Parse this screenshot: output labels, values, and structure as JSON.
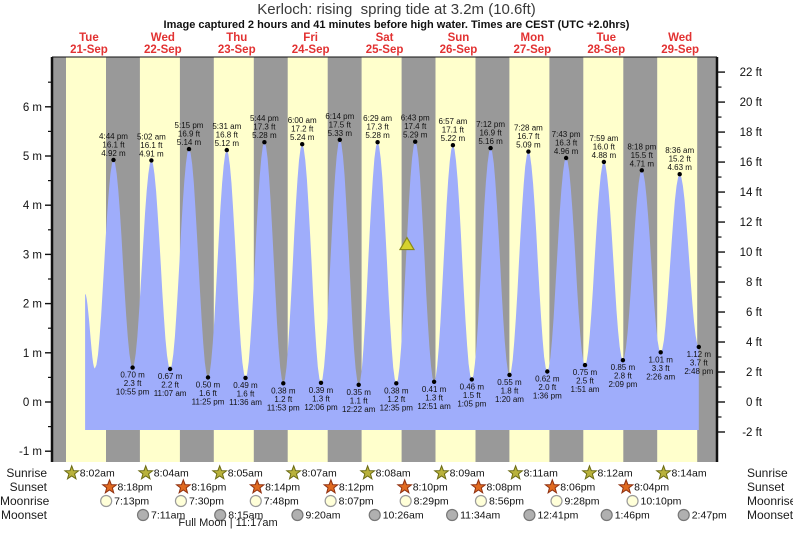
{
  "header": {
    "title": "Kerloch: rising  spring tide at 3.2m (10.6ft)",
    "subtitle": "Image captured 2 hours and 41 minutes before high water. Times are CEST (UTC +2.0hrs)"
  },
  "days": [
    {
      "dow": "Tue",
      "date": "21-Sep"
    },
    {
      "dow": "Wed",
      "date": "22-Sep"
    },
    {
      "dow": "Thu",
      "date": "23-Sep"
    },
    {
      "dow": "Fri",
      "date": "24-Sep"
    },
    {
      "dow": "Sat",
      "date": "25-Sep"
    },
    {
      "dow": "Sun",
      "date": "26-Sep"
    },
    {
      "dow": "Mon",
      "date": "27-Sep"
    },
    {
      "dow": "Tue",
      "date": "28-Sep"
    },
    {
      "dow": "Wed",
      "date": "29-Sep"
    }
  ],
  "chart_data": {
    "type": "area",
    "title": "Kerloch: rising  spring tide at 3.2m (10.6ft)",
    "ylabel_left": "meters",
    "ylabel_right": "feet",
    "ylim_m": [
      -1.2,
      7.0
    ],
    "grid": false,
    "legend": "none",
    "left_ticks": [
      {
        "v": 6,
        "label": "6 m"
      },
      {
        "v": 5,
        "label": "5 m"
      },
      {
        "v": 4,
        "label": "4 m"
      },
      {
        "v": 3,
        "label": "3 m"
      },
      {
        "v": 2,
        "label": "2 m"
      },
      {
        "v": 1,
        "label": "1 m"
      },
      {
        "v": 0,
        "label": "0 m"
      },
      {
        "v": -1,
        "label": "-1 m"
      }
    ],
    "right_ticks": [
      {
        "v": 22,
        "label": "22 ft"
      },
      {
        "v": 20,
        "label": "20 ft"
      },
      {
        "v": 18,
        "label": "18 ft"
      },
      {
        "v": 16,
        "label": "16 ft"
      },
      {
        "v": 14,
        "label": "14 ft"
      },
      {
        "v": 12,
        "label": "12 ft"
      },
      {
        "v": 10,
        "label": "10 ft"
      },
      {
        "v": 8,
        "label": "8 ft"
      },
      {
        "v": 6,
        "label": "6 ft"
      },
      {
        "v": 4,
        "label": "4 ft"
      },
      {
        "v": 2,
        "label": "2 ft"
      },
      {
        "v": 0,
        "label": "0 ft"
      },
      {
        "v": -2,
        "label": "-2 ft"
      }
    ],
    "highs": [
      {
        "day": 0,
        "time": "4:44 pm",
        "ft": "16.1 ft",
        "m": "4.92 m"
      },
      {
        "day": 1,
        "time": "5:02 am",
        "ft": "16.1 ft",
        "m": "4.91 m"
      },
      {
        "day": 1,
        "time": "5:15 pm",
        "ft": "16.9 ft",
        "m": "5.14 m"
      },
      {
        "day": 2,
        "time": "5:31 am",
        "ft": "16.8 ft",
        "m": "5.12 m"
      },
      {
        "day": 2,
        "time": "5:44 pm",
        "ft": "17.3 ft",
        "m": "5.28 m"
      },
      {
        "day": 3,
        "time": "6:00 am",
        "ft": "17.2 ft",
        "m": "5.24 m"
      },
      {
        "day": 3,
        "time": "6:14 pm",
        "ft": "17.5 ft",
        "m": "5.33 m"
      },
      {
        "day": 4,
        "time": "6:29 am",
        "ft": "17.3 ft",
        "m": "5.28 m"
      },
      {
        "day": 4,
        "time": "6:43 pm",
        "ft": "17.4 ft",
        "m": "5.29 m"
      },
      {
        "day": 5,
        "time": "6:57 am",
        "ft": "17.1 ft",
        "m": "5.22 m"
      },
      {
        "day": 5,
        "time": "7:12 pm",
        "ft": "16.9 ft",
        "m": "5.16 m"
      },
      {
        "day": 6,
        "time": "7:28 am",
        "ft": "16.7 ft",
        "m": "5.09 m"
      },
      {
        "day": 6,
        "time": "7:43 pm",
        "ft": "16.3 ft",
        "m": "4.96 m"
      },
      {
        "day": 7,
        "time": "7:59 am",
        "ft": "16.0 ft",
        "m": "4.88 m"
      },
      {
        "day": 7,
        "time": "8:18 pm",
        "ft": "15.5 ft",
        "m": "4.71 m"
      },
      {
        "day": 8,
        "time": "8:36 am",
        "ft": "15.2 ft",
        "m": "4.63 m"
      }
    ],
    "lows": [
      {
        "day": 0,
        "time": "10:55 pm",
        "ft": "2.3 ft",
        "m": "0.70 m"
      },
      {
        "day": 1,
        "time": "11:07 am",
        "ft": "2.2 ft",
        "m": "0.67 m"
      },
      {
        "day": 1,
        "time": "11:25 pm",
        "ft": "1.6 ft",
        "m": "0.50 m"
      },
      {
        "day": 2,
        "time": "11:36 am",
        "ft": "1.6 ft",
        "m": "0.49 m"
      },
      {
        "day": 2,
        "time": "11:53 pm",
        "ft": "1.2 ft",
        "m": "0.38 m"
      },
      {
        "day": 3,
        "time": "12:06 pm",
        "ft": "1.3 ft",
        "m": "0.39 m"
      },
      {
        "day": 4,
        "time": "12:22 am",
        "ft": "1.1 ft",
        "m": "0.35 m"
      },
      {
        "day": 4,
        "time": "12:35 pm",
        "ft": "1.2 ft",
        "m": "0.38 m"
      },
      {
        "day": 5,
        "time": "12:51 am",
        "ft": "1.3 ft",
        "m": "0.41 m"
      },
      {
        "day": 5,
        "time": "1:05 pm",
        "ft": "1.5 ft",
        "m": "0.46 m"
      },
      {
        "day": 6,
        "time": "1:20 am",
        "ft": "1.8 ft",
        "m": "0.55 m"
      },
      {
        "day": 6,
        "time": "1:36 pm",
        "ft": "2.0 ft",
        "m": "0.62 m"
      },
      {
        "day": 7,
        "time": "1:51 am",
        "ft": "2.5 ft",
        "m": "0.75 m"
      },
      {
        "day": 7,
        "time": "2:09 pm",
        "ft": "2.8 ft",
        "m": "0.85 m"
      },
      {
        "day": 8,
        "time": "2:26 am",
        "ft": "3.3 ft",
        "m": "1.01 m"
      },
      {
        "day": 8,
        "time": "2:48 pm",
        "ft": "3.7 ft",
        "m": "1.12 m"
      }
    ],
    "marker": {
      "day": 4,
      "time": "4:02 pm",
      "level_m": 3.2
    },
    "curve_start": {
      "day": 0,
      "time": "7:30 am",
      "level_m": 2.2
    },
    "first_low": {
      "day": 0,
      "time": "10:40 am",
      "level_m": 0.68
    }
  },
  "astro": {
    "row_labels": [
      "Sunrise",
      "Sunset",
      "Moonrise",
      "Moonset"
    ],
    "sunrise": [
      {
        "day": 0,
        "time": "8:02am"
      },
      {
        "day": 1,
        "time": "8:04am"
      },
      {
        "day": 2,
        "time": "8:05am"
      },
      {
        "day": 3,
        "time": "8:07am"
      },
      {
        "day": 4,
        "time": "8:08am"
      },
      {
        "day": 5,
        "time": "8:09am"
      },
      {
        "day": 6,
        "time": "8:11am"
      },
      {
        "day": 7,
        "time": "8:12am"
      },
      {
        "day": 8,
        "time": "8:14am"
      }
    ],
    "sunset": [
      {
        "day": 0,
        "time": "8:18pm"
      },
      {
        "day": 1,
        "time": "8:16pm"
      },
      {
        "day": 2,
        "time": "8:14pm"
      },
      {
        "day": 3,
        "time": "8:12pm"
      },
      {
        "day": 4,
        "time": "8:10pm"
      },
      {
        "day": 5,
        "time": "8:08pm"
      },
      {
        "day": 6,
        "time": "8:06pm"
      },
      {
        "day": 7,
        "time": "8:04pm"
      }
    ],
    "moonrise": [
      {
        "day": 0,
        "time": "7:13pm"
      },
      {
        "day": 1,
        "time": "7:30pm"
      },
      {
        "day": 2,
        "time": "7:48pm"
      },
      {
        "day": 3,
        "time": "8:07pm"
      },
      {
        "day": 4,
        "time": "8:29pm"
      },
      {
        "day": 5,
        "time": "8:56pm"
      },
      {
        "day": 6,
        "time": "9:28pm"
      },
      {
        "day": 7,
        "time": "10:10pm"
      }
    ],
    "moonset": [
      {
        "day": 1,
        "time": "7:11am"
      },
      {
        "day": 2,
        "time": "8:15am"
      },
      {
        "day": 3,
        "time": "9:20am"
      },
      {
        "day": 4,
        "time": "10:26am"
      },
      {
        "day": 5,
        "time": "11:34am"
      },
      {
        "day": 6,
        "time": "12:41pm"
      },
      {
        "day": 7,
        "time": "1:46pm"
      },
      {
        "day": 8,
        "time": "2:47pm"
      }
    ],
    "footnote": "Full Moon | 11:17am"
  },
  "colors": {
    "band_day": "#ffffcc",
    "band_night": "#999999",
    "tide_fill": "#9fadfb",
    "day_label_red": "#e23232",
    "marker_fill": "#d6d22e",
    "marker_stroke": "#8a8a1a",
    "sunrise_fill": "#b9b23b",
    "sunrise_stroke": "#6b6b14",
    "sunset_fill": "#e06a20",
    "sunset_stroke": "#8f3010",
    "moonrise_fill": "#ffffd8",
    "moonrise_stroke": "#999999",
    "moonset_fill": "#b0b0b0",
    "moonset_stroke": "#777777",
    "axis": "#111111",
    "text": "#111111"
  }
}
